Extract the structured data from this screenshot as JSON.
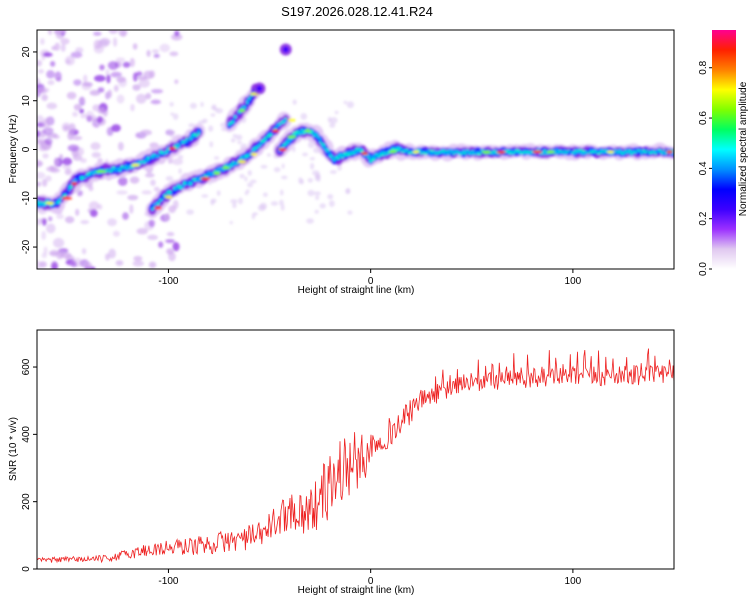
{
  "figure_title": "S197.2026.028.12.41.R24",
  "chart_data": [
    {
      "type": "heatmap",
      "name": "spectrogram",
      "xlabel": "Height of straight line (km)",
      "ylabel": "Frequency (Hz)",
      "xlim": [
        -165,
        150
      ],
      "ylim": [
        -24.5,
        24.5
      ],
      "xticks": [
        -100,
        0,
        100
      ],
      "yticks": [
        -20,
        -10,
        0,
        10,
        20
      ],
      "colorbar": {
        "label": "Normalized spectral amplitude",
        "range": [
          0,
          0.95
        ],
        "ticks": [
          0.0,
          0.2,
          0.4,
          0.6,
          0.8
        ],
        "colors": [
          "#ffffff",
          "#e0c8f0",
          "#9b30ff",
          "#3c00ff",
          "#0000ff",
          "#0090ff",
          "#00ffff",
          "#00ff60",
          "#80ff00",
          "#ffff00",
          "#ff8000",
          "#ff2000",
          "#ff0090"
        ]
      },
      "features": [
        {
          "label": "main trace",
          "points": [
            [
              -165,
              -11
            ],
            [
              -155,
              -11
            ],
            [
              -145,
              -6
            ],
            [
              -135,
              -4.5
            ],
            [
              -125,
              -4
            ],
            [
              -115,
              -3
            ],
            [
              -105,
              -1
            ],
            [
              -95,
              1
            ],
            [
              -90,
              2
            ],
            [
              -85,
              3.5
            ]
          ]
        },
        {
          "label": "lower branch",
          "points": [
            [
              -108,
              -12
            ],
            [
              -100,
              -9
            ],
            [
              -92,
              -7
            ],
            [
              -84,
              -6
            ],
            [
              -76,
              -4.5
            ],
            [
              -68,
              -3
            ],
            [
              -60,
              -1
            ],
            [
              -55,
              1
            ],
            [
              -50,
              3
            ],
            [
              -45,
              5
            ],
            [
              -42,
              6
            ]
          ]
        },
        {
          "label": "upper branch",
          "points": [
            [
              -70,
              5
            ],
            [
              -62,
              9
            ],
            [
              -57,
              12
            ]
          ]
        },
        {
          "label": "hump",
          "points": [
            [
              -45,
              0
            ],
            [
              -38,
              3
            ],
            [
              -32,
              4
            ],
            [
              -27,
              3
            ],
            [
              -22,
              0
            ],
            [
              -18,
              -2
            ],
            [
              -12,
              -1
            ],
            [
              -5,
              0
            ],
            [
              0,
              -2
            ],
            [
              5,
              -1
            ],
            [
              12,
              0
            ],
            [
              20,
              -0.5
            ],
            [
              40,
              -0.6
            ],
            [
              80,
              -0.5
            ],
            [
              120,
              -0.5
            ],
            [
              150,
              -0.5
            ]
          ]
        }
      ]
    },
    {
      "type": "line",
      "name": "snr",
      "xlabel": "Height of straight line (km)",
      "ylabel": "SNR (10 * v/v)",
      "xlim": [
        -165,
        150
      ],
      "ylim": [
        0,
        710
      ],
      "xticks": [
        -100,
        0,
        100
      ],
      "yticks": [
        0,
        200,
        400,
        600
      ],
      "color": "#ee2222",
      "envelope": [
        {
          "x": -165,
          "base": 25,
          "amp": 15
        },
        {
          "x": -130,
          "base": 30,
          "amp": 20
        },
        {
          "x": -110,
          "base": 55,
          "amp": 45
        },
        {
          "x": -80,
          "base": 70,
          "amp": 60
        },
        {
          "x": -55,
          "base": 95,
          "amp": 80
        },
        {
          "x": -40,
          "base": 170,
          "amp": 110
        },
        {
          "x": -30,
          "base": 160,
          "amp": 150
        },
        {
          "x": -20,
          "base": 240,
          "amp": 200
        },
        {
          "x": -12,
          "base": 300,
          "amp": 230
        },
        {
          "x": -5,
          "base": 310,
          "amp": 160
        },
        {
          "x": 3,
          "base": 380,
          "amp": 90
        },
        {
          "x": 12,
          "base": 410,
          "amp": 90
        },
        {
          "x": 25,
          "base": 500,
          "amp": 60
        },
        {
          "x": 45,
          "base": 545,
          "amp": 55
        },
        {
          "x": 80,
          "base": 565,
          "amp": 60
        },
        {
          "x": 120,
          "base": 570,
          "amp": 60
        },
        {
          "x": 150,
          "base": 575,
          "amp": 55
        }
      ]
    }
  ]
}
